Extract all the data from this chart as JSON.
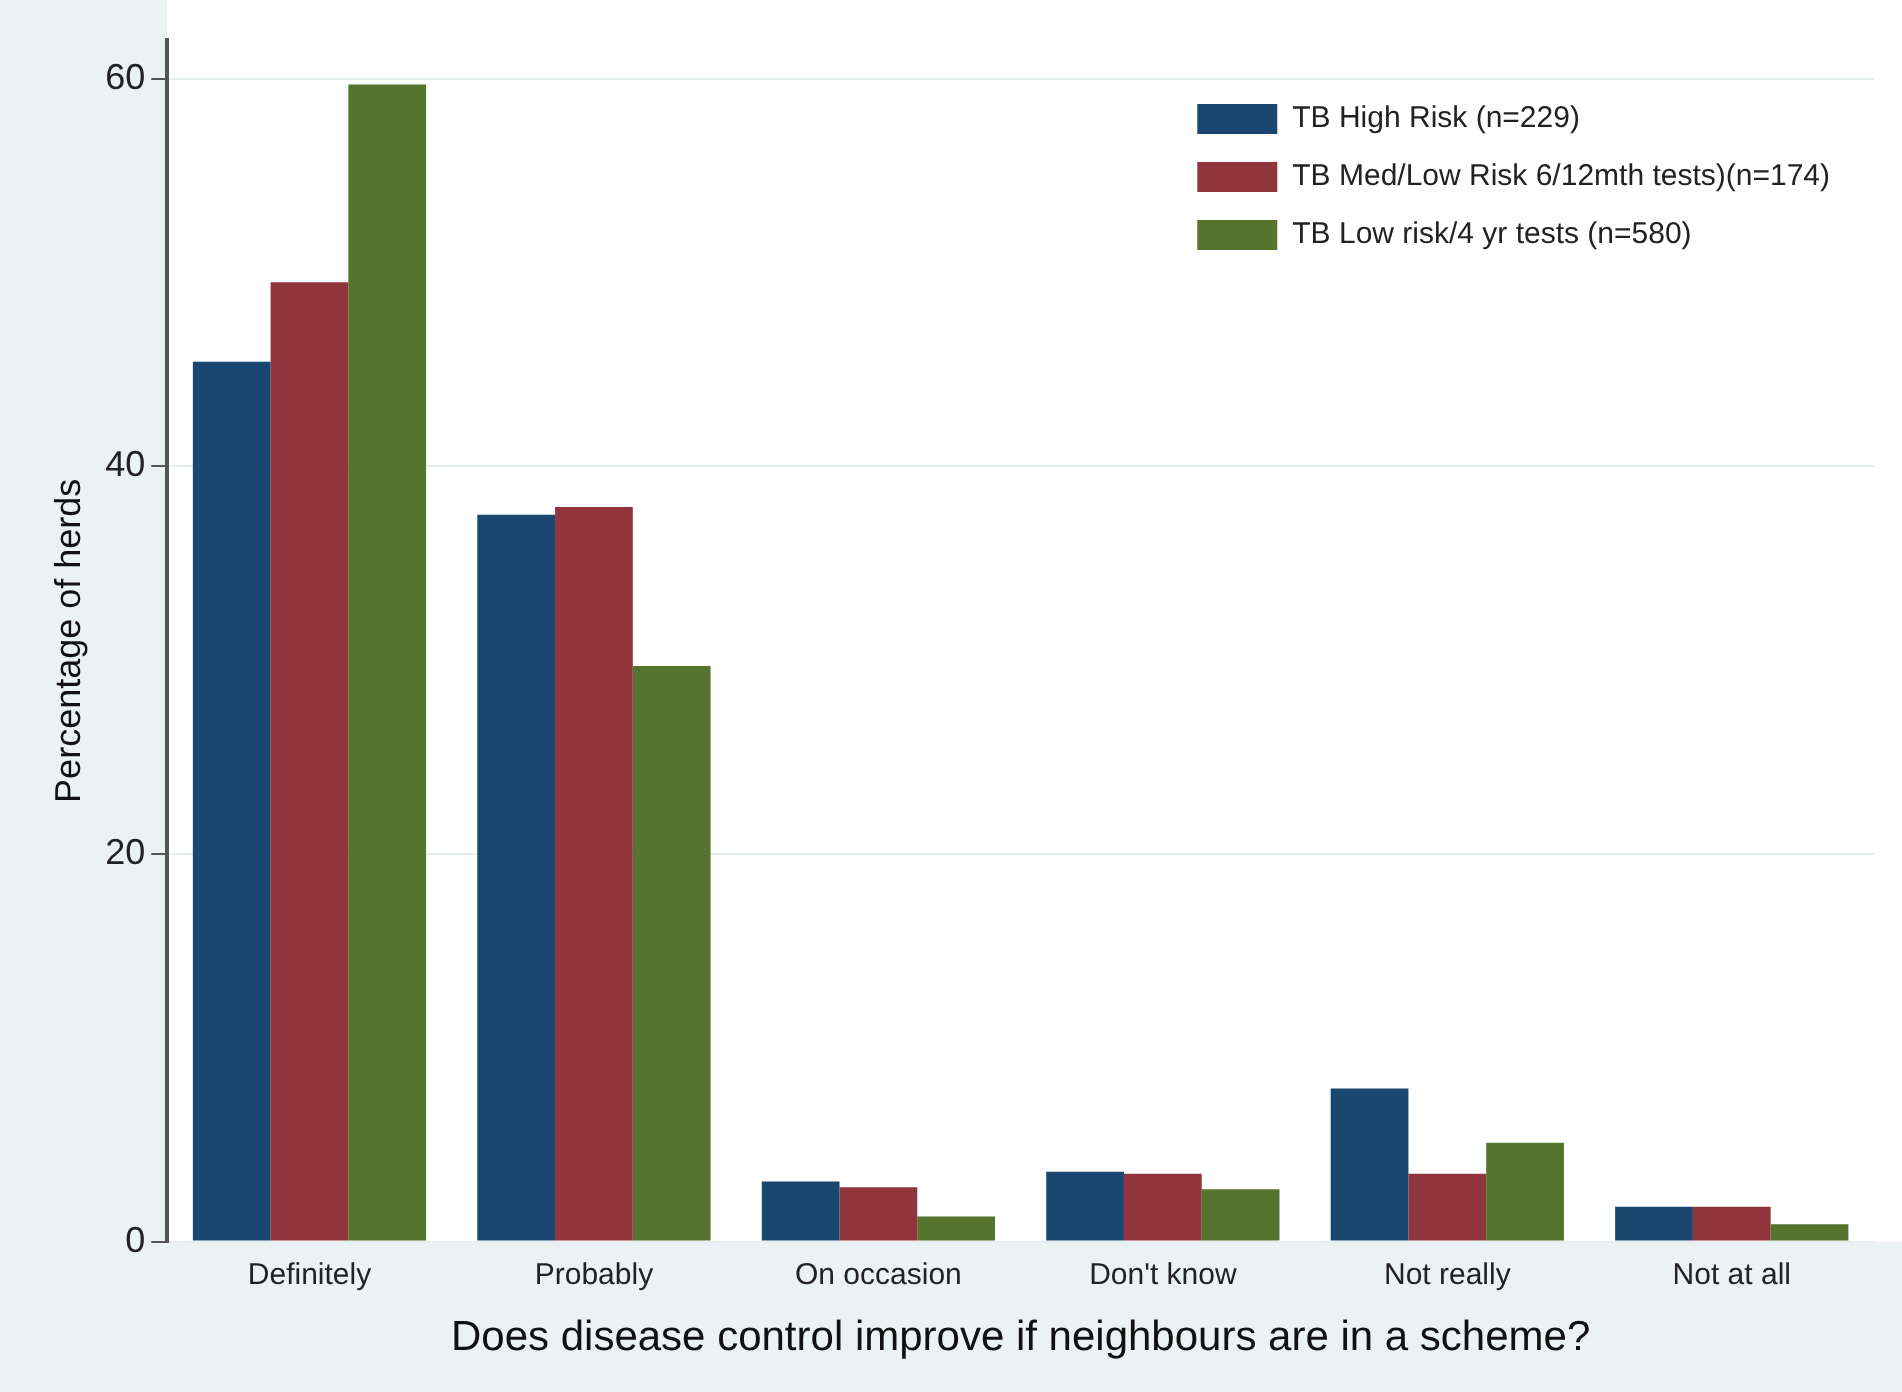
{
  "chart_data": {
    "type": "bar",
    "xlabel": "Does disease control improve if neighbours are in a scheme?",
    "ylabel": "Percentage of herds",
    "categories": [
      "Definitely",
      "Probably",
      "On occasion",
      "Don't know",
      "Not really",
      "Not at all"
    ],
    "series": [
      {
        "name": "TB High Risk (n=229)",
        "color": "#1a476f",
        "values": [
          45.4,
          37.5,
          3.1,
          3.6,
          7.9,
          1.8
        ]
      },
      {
        "name": "TB Med/Low Risk 6/12mth tests)(n=174)",
        "color": "#90353b",
        "values": [
          49.5,
          37.9,
          2.8,
          3.5,
          3.5,
          1.8
        ]
      },
      {
        "name": "TB Low risk/4 yr tests (n=580)",
        "color": "#55752f",
        "values": [
          59.7,
          29.7,
          1.3,
          2.7,
          5.1,
          0.9
        ]
      }
    ],
    "ylim": [
      0,
      62
    ],
    "yticks": [
      0,
      20,
      40,
      60
    ],
    "grid": "y",
    "legend": "top right"
  }
}
